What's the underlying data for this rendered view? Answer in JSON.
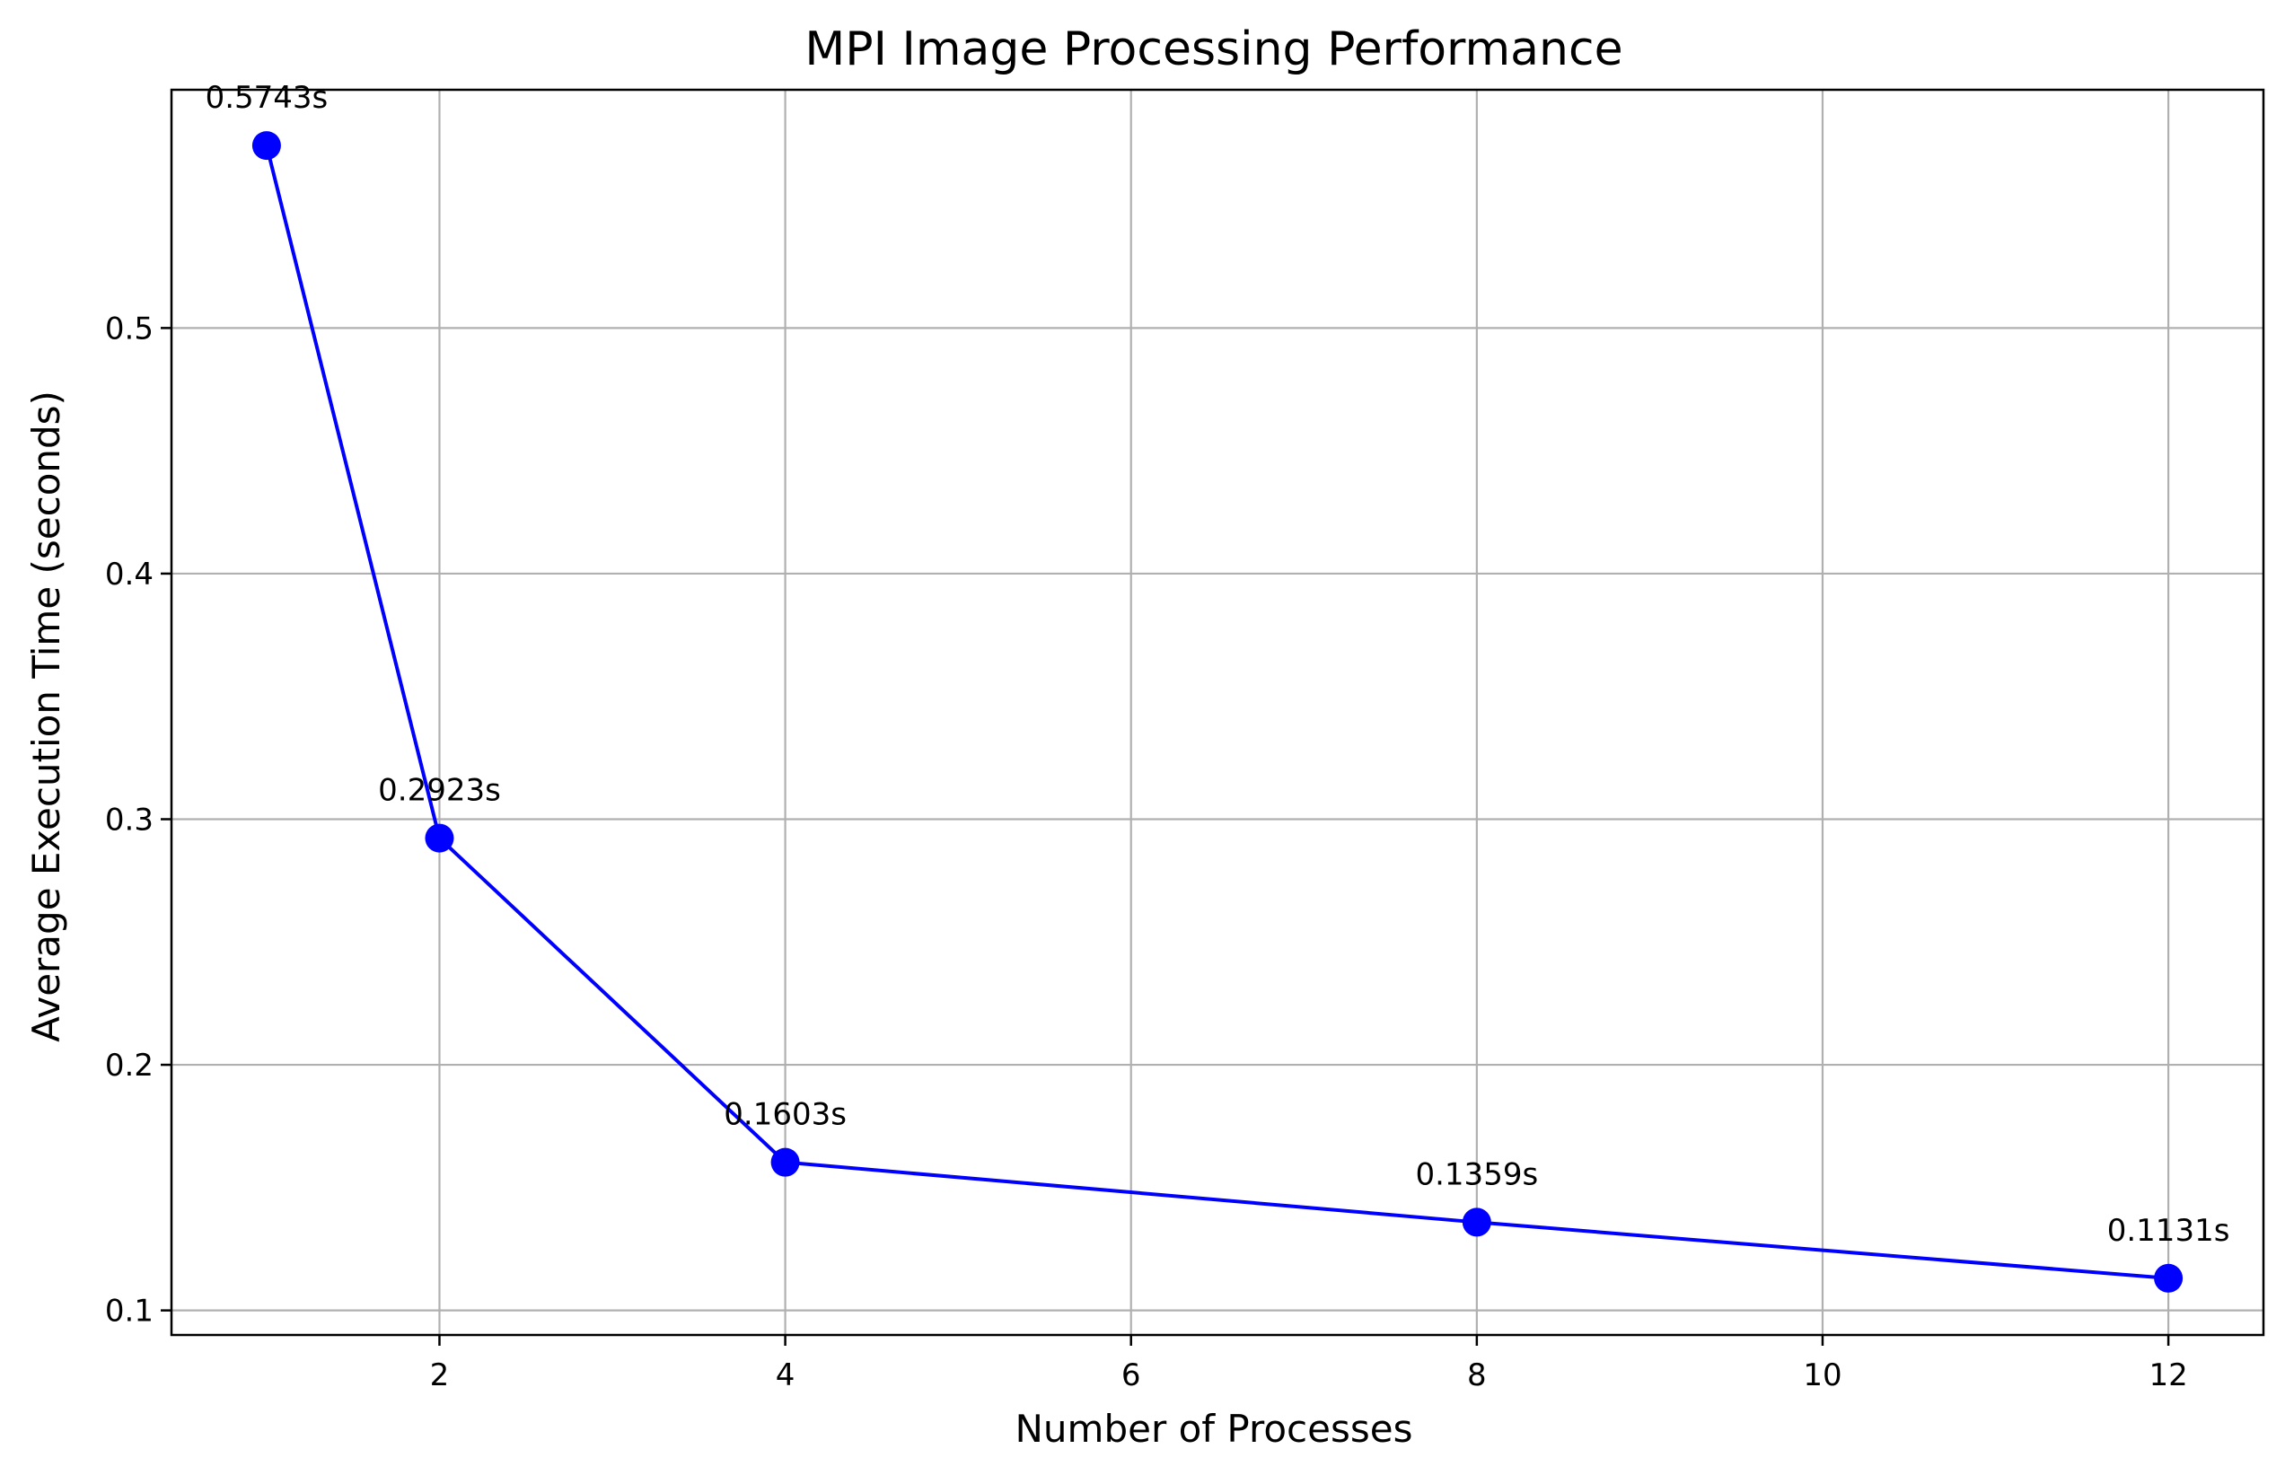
{
  "chart_data": {
    "type": "line",
    "title": "MPI Image Processing Performance",
    "xlabel": "Number of Processes",
    "ylabel": "Average Execution Time (seconds)",
    "x": [
      1,
      2,
      4,
      8,
      12
    ],
    "series": [
      {
        "values": [
          0.5743,
          0.2923,
          0.1603,
          0.1359,
          0.1131
        ],
        "labels": [
          "0.5743s",
          "0.2923s",
          "0.1603s",
          "0.1359s",
          "0.1131s"
        ],
        "color": "#0000ff",
        "marker": "circle"
      }
    ],
    "xlim": [
      0.45,
      12.55
    ],
    "ylim": [
      0.09,
      0.597
    ],
    "xticks": [
      2,
      4,
      6,
      8,
      10,
      12
    ],
    "xtick_labels": [
      "2",
      "4",
      "6",
      "8",
      "10",
      "12"
    ],
    "yticks": [
      0.1,
      0.2,
      0.3,
      0.4,
      0.5
    ],
    "ytick_labels": [
      "0.1",
      "0.2",
      "0.3",
      "0.4",
      "0.5"
    ],
    "grid": true,
    "legend": "none"
  }
}
